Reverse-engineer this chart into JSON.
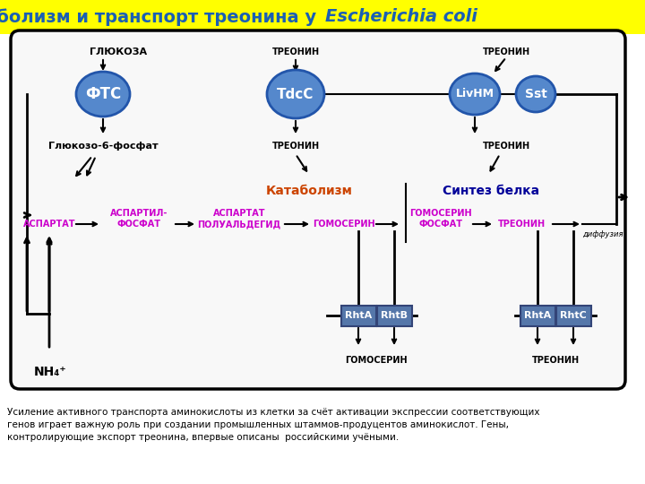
{
  "title1": "Метаболизм и транспорт треонина у ",
  "title2": "Escherichia coli",
  "title_color": "#1a5fb4",
  "title_bg": "#ffff00",
  "fig_bg": "#ffffff",
  "bottom_text": "Усиление активного транспорта аминокислоты из клетки за счёт активации экспрессии соответствующих\nгенов играет важную роль при создании промышленных штаммов-продуцентов аминокислот. Гены,\nконтролирующие экспорт треонина, впервые описаны  российскими учёными.",
  "circle_color": "#5588cc",
  "circle_edge": "#2255aa",
  "rect_color": "#5577aa",
  "rect_edge": "#334477",
  "magenta": "#cc00cc",
  "orange_red": "#cc4400",
  "dark_blue": "#000099",
  "arrow_color": "#000000",
  "cell_bg": "#f8f8f8",
  "cell_edge": "#000000"
}
